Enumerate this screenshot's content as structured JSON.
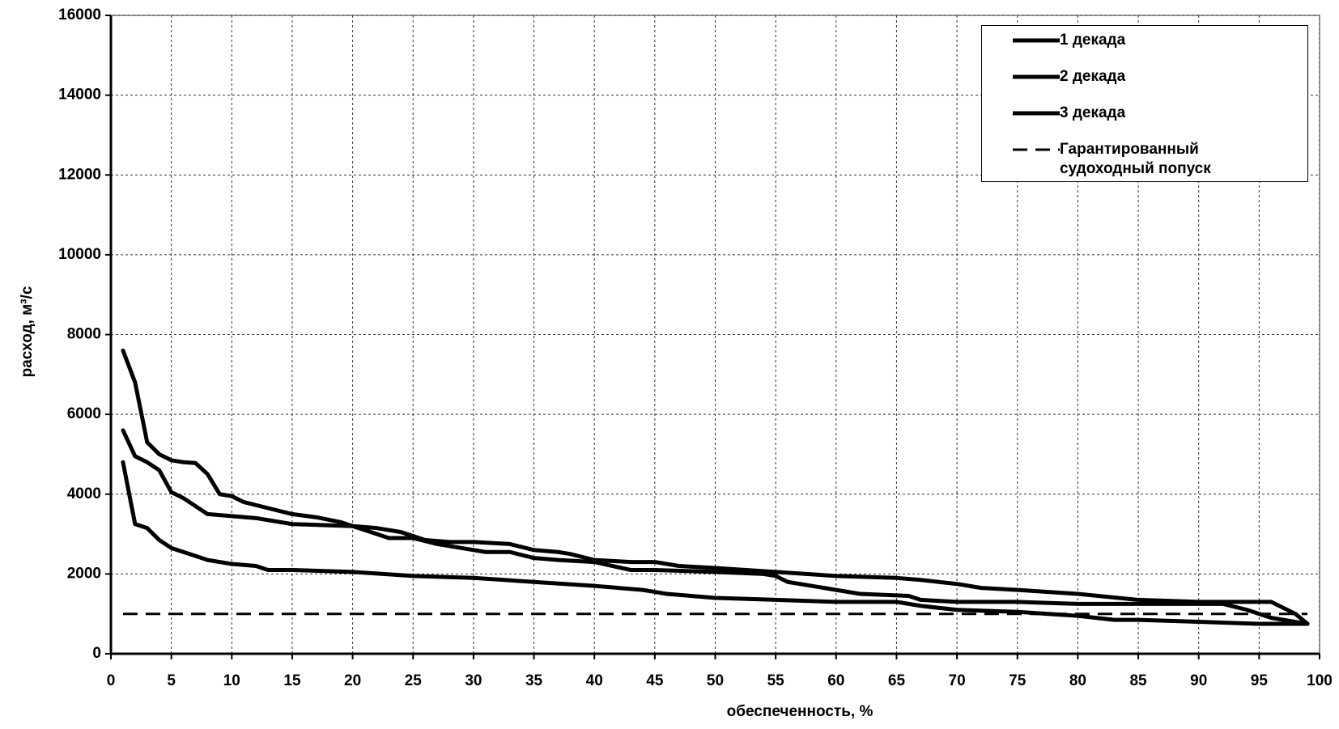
{
  "chart_data": {
    "type": "line",
    "xlabel": "обеспеченность, %",
    "ylabel": "расход, м³/с",
    "xlim": [
      0,
      100
    ],
    "xticks": [
      0,
      5,
      10,
      15,
      20,
      25,
      30,
      35,
      40,
      45,
      50,
      55,
      60,
      65,
      70,
      75,
      80,
      85,
      90,
      95,
      100
    ],
    "ylim": [
      0,
      16000
    ],
    "yticks": [
      0,
      2000,
      4000,
      6000,
      8000,
      10000,
      12000,
      14000,
      16000
    ],
    "grid": true,
    "legend": "upper right",
    "series": [
      {
        "name": "1 декада",
        "color": "#000000",
        "x": [
          1,
          2,
          3,
          4,
          5,
          6,
          7,
          8,
          9,
          10,
          11,
          13,
          15,
          17,
          19,
          20,
          21,
          23,
          25,
          27,
          29,
          31,
          33,
          35,
          37,
          40,
          43,
          45,
          50,
          54,
          55,
          56,
          58,
          60,
          62,
          66,
          67,
          70,
          75,
          80,
          85,
          90,
          92,
          94,
          96,
          98,
          99
        ],
        "values": [
          7600,
          6800,
          5300,
          5000,
          4850,
          4800,
          4780,
          4500,
          4000,
          3950,
          3800,
          3650,
          3500,
          3420,
          3300,
          3200,
          3100,
          2900,
          2900,
          2750,
          2650,
          2550,
          2550,
          2400,
          2350,
          2300,
          2100,
          2100,
          2050,
          2000,
          1950,
          1800,
          1700,
          1600,
          1500,
          1450,
          1350,
          1300,
          1300,
          1250,
          1250,
          1250,
          1250,
          1100,
          900,
          800,
          750
        ]
      },
      {
        "name": "2 декада",
        "color": "#000000",
        "x": [
          1,
          2,
          3,
          4,
          5,
          6,
          7,
          8,
          10,
          12,
          15,
          20,
          22,
          24,
          26,
          28,
          30,
          33,
          35,
          37,
          38,
          40,
          43,
          45,
          47,
          50,
          55,
          60,
          65,
          67,
          70,
          72,
          75,
          80,
          85,
          90,
          93,
          96,
          98,
          99
        ],
        "values": [
          5600,
          4950,
          4800,
          4600,
          4050,
          3900,
          3700,
          3500,
          3450,
          3400,
          3250,
          3200,
          3150,
          3050,
          2850,
          2800,
          2800,
          2750,
          2600,
          2550,
          2500,
          2350,
          2300,
          2300,
          2200,
          2150,
          2050,
          1950,
          1900,
          1850,
          1750,
          1650,
          1600,
          1500,
          1350,
          1300,
          1300,
          1300,
          1000,
          750
        ]
      },
      {
        "name": "3 декада",
        "color": "#000000",
        "x": [
          1,
          2,
          3,
          4,
          5,
          6,
          7,
          8,
          10,
          12,
          13,
          15,
          20,
          25,
          30,
          35,
          40,
          44,
          45,
          46,
          48,
          50,
          55,
          60,
          65,
          67,
          70,
          75,
          80,
          83,
          85,
          90,
          95,
          99
        ],
        "values": [
          4800,
          3250,
          3150,
          2850,
          2650,
          2550,
          2450,
          2350,
          2250,
          2200,
          2100,
          2100,
          2050,
          1950,
          1900,
          1800,
          1700,
          1600,
          1550,
          1500,
          1450,
          1400,
          1350,
          1300,
          1300,
          1200,
          1100,
          1050,
          950,
          850,
          850,
          800,
          750,
          750
        ]
      },
      {
        "name": "Гарантированный судоходный попуск",
        "color": "#000000",
        "dashed": true,
        "x": [
          1,
          99
        ],
        "values": [
          1000,
          1000
        ]
      }
    ]
  }
}
